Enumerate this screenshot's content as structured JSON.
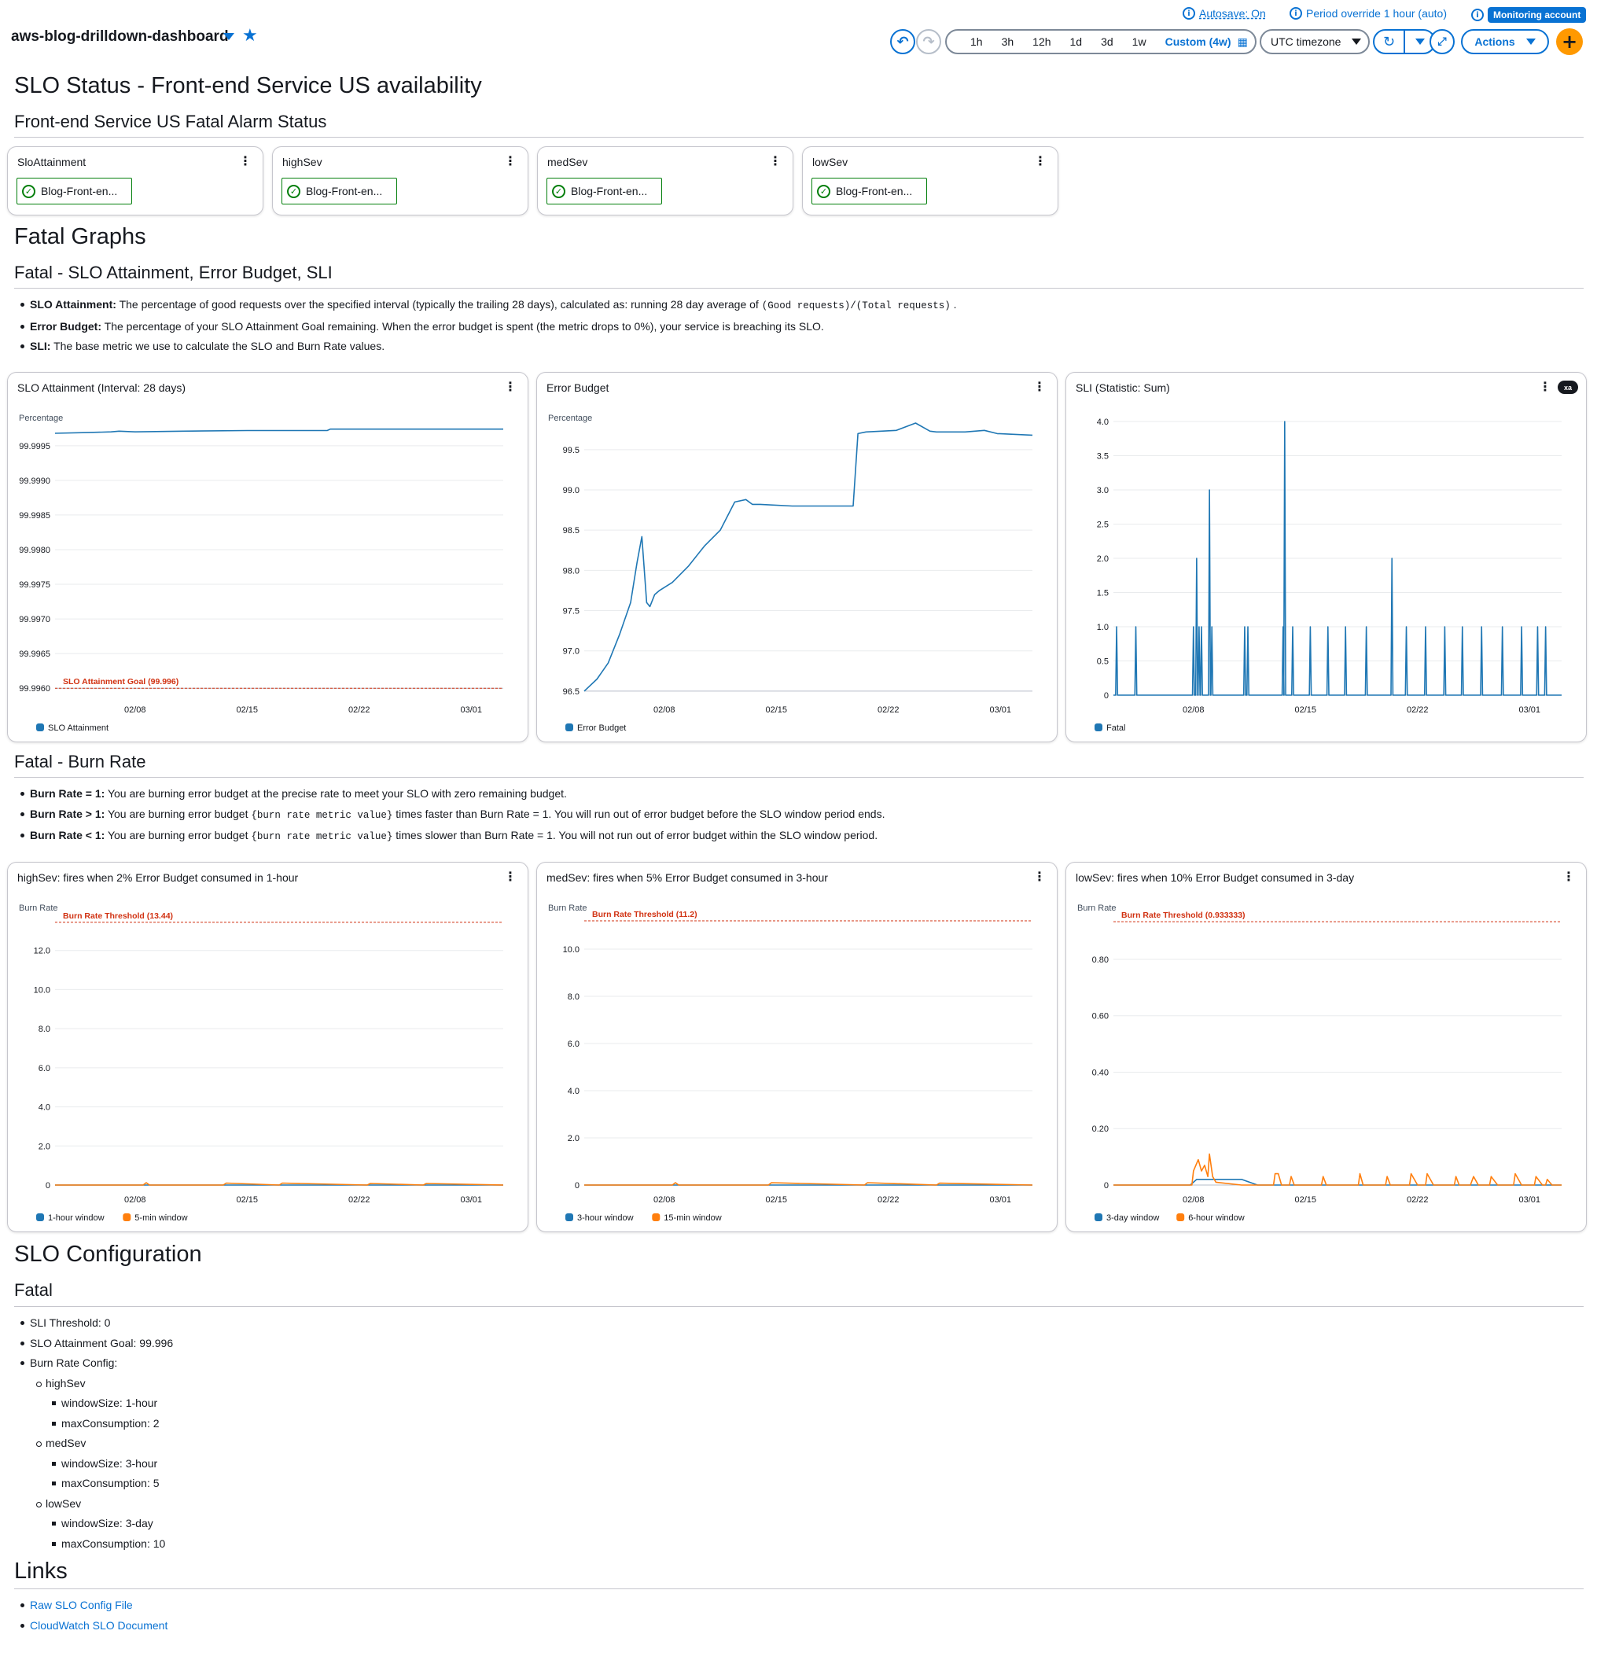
{
  "header": {
    "dashboard_title": "aws-blog-drilldown-dashboard",
    "autosave": "Autosave: On",
    "period_override": "Period override 1 hour (auto)",
    "monitoring_account": "Monitoring account",
    "time_ranges": [
      "1h",
      "3h",
      "12h",
      "1d",
      "3d",
      "1w"
    ],
    "custom_range": "Custom (4w)",
    "timezone": "UTC timezone",
    "actions": "Actions"
  },
  "slo_status": {
    "title": "SLO Status - Front-end Service US availability",
    "alarm_heading": "Front-end Service US Fatal Alarm Status",
    "alarms": [
      {
        "name": "SloAttainment",
        "label": "Blog-Front-en..."
      },
      {
        "name": "highSev",
        "label": "Blog-Front-en..."
      },
      {
        "name": "medSev",
        "label": "Blog-Front-en..."
      },
      {
        "name": "lowSev",
        "label": "Blog-Front-en..."
      }
    ]
  },
  "fatal_graphs": {
    "title": "Fatal Graphs",
    "subtitle": "Fatal - SLO Attainment, Error Budget, SLI",
    "bullets": [
      {
        "term": "SLO Attainment:",
        "text": "The percentage of good requests over the specified interval (typically the trailing 28 days), calculated as: running 28 day average of",
        "code": "(Good requests)/(Total requests)",
        "tail": "."
      },
      {
        "term": "Error Budget:",
        "text": "The percentage of your SLO Attainment Goal remaining. When the error budget is spent (the metric drops to 0%), your service is breaching its SLO."
      },
      {
        "term": "SLI:",
        "text": "The base metric we use to calculate the SLO and Burn Rate values."
      }
    ]
  },
  "burn_rate": {
    "title": "Fatal - Burn Rate",
    "bullets": [
      {
        "term": "Burn Rate = 1:",
        "text": "You are burning error budget at the precise rate to meet your SLO with zero remaining budget."
      },
      {
        "term": "Burn Rate > 1:",
        "text": "You are burning error budget",
        "code": "{burn rate metric value}",
        "tail": "times faster than Burn Rate = 1. You will run out of error budget before the SLO window period ends."
      },
      {
        "term": "Burn Rate < 1:",
        "text": "You are burning error budget",
        "code": "{burn rate metric value}",
        "tail": "times slower than Burn Rate = 1. You will not run out of error budget within the SLO window period."
      }
    ]
  },
  "config": {
    "title": "SLO Configuration",
    "subtitle": "Fatal",
    "sli_threshold": "SLI Threshold: 0",
    "goal": "SLO Attainment Goal: 99.996",
    "burn_rate_config": "Burn Rate Config:",
    "severities": [
      {
        "name": "highSev",
        "window": "windowSize: 1-hour",
        "max": "maxConsumption: 2"
      },
      {
        "name": "medSev",
        "window": "windowSize: 3-hour",
        "max": "maxConsumption: 5"
      },
      {
        "name": "lowSev",
        "window": "windowSize: 3-day",
        "max": "maxConsumption: 10"
      }
    ]
  },
  "links": {
    "title": "Links",
    "items": [
      "Raw SLO Config File",
      "CloudWatch SLO Document"
    ]
  },
  "colors": {
    "blue": "#1f77b4",
    "orange": "#ff7f0e",
    "threshold": "#d13212",
    "link": "#0972d3"
  },
  "chart_data": [
    {
      "id": "slo_attainment",
      "type": "line",
      "title": "SLO Attainment (Interval: 28 days)",
      "ylabel": "Percentage",
      "ylim": [
        99.9959,
        99.99985
      ],
      "yticks": [
        99.996,
        99.9965,
        99.997,
        99.9975,
        99.998,
        99.9985,
        99.999,
        99.9995
      ],
      "ytick_labels": [
        "99.9960",
        "99.9965",
        "99.9970",
        "99.9975",
        "99.9980",
        "99.9985",
        "99.9990",
        "99.9995"
      ],
      "xlim": [
        0,
        28
      ],
      "xticks": [
        5,
        12,
        19,
        26
      ],
      "xtick_labels": [
        "02/08",
        "02/15",
        "02/22",
        "03/01"
      ],
      "series": [
        {
          "name": "SLO Attainment",
          "color": "#1f77b4",
          "x": [
            0,
            2,
            3.5,
            4,
            5,
            8,
            12,
            17,
            17.2,
            22,
            28
          ],
          "y": [
            99.99968,
            99.99969,
            99.9997,
            99.99971,
            99.9997,
            99.99971,
            99.99972,
            99.99972,
            99.99974,
            99.99974,
            99.99974
          ]
        }
      ],
      "threshold": {
        "value": 99.996,
        "label": "SLO Attainment Goal (99.996)"
      }
    },
    {
      "id": "error_budget",
      "type": "line",
      "title": "Error Budget",
      "ylabel": "Percentage",
      "ylim": [
        96.45,
        99.85
      ],
      "yticks": [
        96.5,
        97.0,
        97.5,
        98.0,
        98.5,
        99.0,
        99.5
      ],
      "ytick_labels": [
        "96.5",
        "97.0",
        "97.5",
        "98.0",
        "98.5",
        "99.0",
        "99.5"
      ],
      "xlim": [
        0,
        28
      ],
      "xticks": [
        5,
        12,
        19,
        26
      ],
      "xtick_labels": [
        "02/08",
        "02/15",
        "02/22",
        "03/01"
      ],
      "series": [
        {
          "name": "Error Budget",
          "color": "#1f77b4",
          "x": [
            0,
            0.8,
            1.5,
            2.2,
            2.9,
            3.3,
            3.6,
            3.9,
            4.1,
            4.4,
            4.7,
            5.5,
            6.5,
            7.5,
            8.5,
            9.4,
            10.1,
            10.5,
            11.0,
            13.0,
            16.8,
            17.1,
            17.6,
            19.5,
            20.7,
            21.6,
            22.0,
            23.8,
            25.0,
            25.8,
            28.0
          ],
          "y": [
            96.5,
            96.65,
            96.85,
            97.2,
            97.6,
            98.1,
            98.42,
            97.6,
            97.55,
            97.7,
            97.75,
            97.85,
            98.05,
            98.3,
            98.5,
            98.85,
            98.88,
            98.82,
            98.82,
            98.8,
            98.8,
            99.7,
            99.72,
            99.74,
            99.83,
            99.73,
            99.72,
            99.72,
            99.74,
            99.7,
            99.68
          ]
        }
      ]
    },
    {
      "id": "sli",
      "type": "line",
      "title": "SLI (Statistic: Sum)",
      "ylim": [
        0,
        4.0
      ],
      "yticks": [
        0,
        0.5,
        1.0,
        1.5,
        2.0,
        2.5,
        3.0,
        3.5,
        4.0
      ],
      "ytick_labels": [
        "0",
        "0.5",
        "1.0",
        "1.5",
        "2.0",
        "2.5",
        "3.0",
        "3.5",
        "4.0"
      ],
      "xlim": [
        0,
        28
      ],
      "xticks": [
        5,
        12,
        19,
        26
      ],
      "xtick_labels": [
        "02/08",
        "02/15",
        "02/22",
        "03/01"
      ],
      "series": [
        {
          "name": "Fatal",
          "color": "#1f77b4",
          "spikes": [
            [
              0.2,
              1
            ],
            [
              1.4,
              1
            ],
            [
              5.0,
              1
            ],
            [
              5.2,
              2
            ],
            [
              5.35,
              1
            ],
            [
              5.5,
              1
            ],
            [
              6.0,
              3
            ],
            [
              6.15,
              1
            ],
            [
              8.2,
              1
            ],
            [
              8.4,
              1
            ],
            [
              10.6,
              1
            ],
            [
              10.7,
              4
            ],
            [
              11.2,
              1
            ],
            [
              12.3,
              1
            ],
            [
              13.4,
              1
            ],
            [
              14.5,
              1
            ],
            [
              15.8,
              1
            ],
            [
              17.4,
              2
            ],
            [
              18.3,
              1
            ],
            [
              19.5,
              1
            ],
            [
              20.7,
              1
            ],
            [
              21.8,
              1
            ],
            [
              23.0,
              1
            ],
            [
              24.3,
              1
            ],
            [
              25.5,
              1
            ],
            [
              26.5,
              1
            ],
            [
              27.0,
              1
            ]
          ]
        }
      ]
    },
    {
      "id": "high_sev",
      "type": "line",
      "title": "highSev: fires when 2% Error Budget consumed in 1-hour",
      "ylabel": "Burn Rate",
      "ylim": [
        0,
        14.0
      ],
      "yticks": [
        0,
        2.0,
        4.0,
        6.0,
        8.0,
        10.0,
        12.0
      ],
      "ytick_labels": [
        "0",
        "2.0",
        "4.0",
        "6.0",
        "8.0",
        "10.0",
        "12.0"
      ],
      "xlim": [
        0,
        28
      ],
      "xticks": [
        5,
        12,
        19,
        26
      ],
      "xtick_labels": [
        "02/08",
        "02/15",
        "02/22",
        "03/01"
      ],
      "threshold": {
        "value": 13.44,
        "label": "Burn Rate Threshold (13.44)"
      },
      "series": [
        {
          "name": "1-hour window",
          "color": "#1f77b4",
          "x": [
            0,
            28
          ],
          "y": [
            0,
            0
          ]
        },
        {
          "name": "5-min window",
          "color": "#ff7f0e",
          "x": [
            0,
            5.5,
            5.7,
            5.9,
            10.5,
            10.7,
            14,
            14.2,
            19.5,
            19.7,
            23,
            23.2,
            28
          ],
          "y": [
            0,
            0,
            0.12,
            0,
            0,
            0.1,
            0,
            0.1,
            0,
            0.08,
            0,
            0.08,
            0
          ]
        }
      ]
    },
    {
      "id": "med_sev",
      "type": "line",
      "title": "medSev: fires when 5% Error Budget consumed in 3-hour",
      "ylabel": "Burn Rate",
      "ylim": [
        0,
        11.6
      ],
      "yticks": [
        0,
        2.0,
        4.0,
        6.0,
        8.0,
        10.0
      ],
      "ytick_labels": [
        "0",
        "2.0",
        "4.0",
        "6.0",
        "8.0",
        "10.0"
      ],
      "xlim": [
        0,
        28
      ],
      "xticks": [
        5,
        12,
        19,
        26
      ],
      "xtick_labels": [
        "02/08",
        "02/15",
        "02/22",
        "03/01"
      ],
      "threshold": {
        "value": 11.2,
        "label": "Burn Rate Threshold (11.2)"
      },
      "series": [
        {
          "name": "3-hour window",
          "color": "#1f77b4",
          "x": [
            0,
            28
          ],
          "y": [
            0,
            0
          ]
        },
        {
          "name": "15-min window",
          "color": "#ff7f0e",
          "x": [
            0,
            5.5,
            5.7,
            5.9,
            11.5,
            11.7,
            17.5,
            17.7,
            22,
            22.2,
            28
          ],
          "y": [
            0,
            0,
            0.1,
            0,
            0,
            0.1,
            0,
            0.1,
            0,
            0.08,
            0
          ]
        }
      ]
    },
    {
      "id": "low_sev",
      "type": "line",
      "title": "lowSev: fires when 10% Error Budget consumed in 3-day",
      "ylabel": "Burn Rate",
      "ylim": [
        0,
        0.97
      ],
      "yticks": [
        0,
        0.2,
        0.4,
        0.6,
        0.8
      ],
      "ytick_labels": [
        "0",
        "0.20",
        "0.40",
        "0.60",
        "0.80"
      ],
      "xlim": [
        0,
        28
      ],
      "xticks": [
        5,
        12,
        19,
        26
      ],
      "xtick_labels": [
        "02/08",
        "02/15",
        "02/22",
        "03/01"
      ],
      "threshold": {
        "value": 0.933333,
        "label": "Burn Rate Threshold (0.933333)"
      },
      "series": [
        {
          "name": "3-day window",
          "color": "#1f77b4",
          "x": [
            0,
            4.8,
            5.2,
            6.0,
            8.0,
            9.0,
            28
          ],
          "y": [
            0,
            0,
            0.02,
            0.02,
            0.02,
            0,
            0
          ]
        },
        {
          "name": "6-hour window",
          "color": "#ff7f0e",
          "x": [
            0,
            4.9,
            5.0,
            5.3,
            5.5,
            5.7,
            5.9,
            6.0,
            6.2,
            6.4,
            8.0,
            10.0,
            10.1,
            10.3,
            10.5,
            11.0,
            11.1,
            11.3,
            13.0,
            13.1,
            13.3,
            15.3,
            15.4,
            15.6,
            17.0,
            17.1,
            17.3,
            18.5,
            18.6,
            19.0,
            19.5,
            19.6,
            20.0,
            21.3,
            21.4,
            21.6,
            22.3,
            22.5,
            22.8,
            23.5,
            23.6,
            24.0,
            25.0,
            25.1,
            25.5,
            26.3,
            26.4,
            26.8,
            27.0,
            27.1,
            27.4,
            28.0
          ],
          "y": [
            0,
            0,
            0.05,
            0.09,
            0.05,
            0.07,
            0.03,
            0.11,
            0.03,
            0.01,
            0,
            0,
            0.04,
            0.04,
            0,
            0,
            0.03,
            0,
            0,
            0.03,
            0,
            0,
            0.04,
            0,
            0,
            0.03,
            0,
            0,
            0.04,
            0,
            0,
            0.04,
            0,
            0,
            0.03,
            0,
            0,
            0.03,
            0,
            0,
            0.03,
            0,
            0,
            0.04,
            0,
            0,
            0.03,
            0,
            0,
            0.02,
            0,
            0
          ]
        }
      ]
    }
  ]
}
